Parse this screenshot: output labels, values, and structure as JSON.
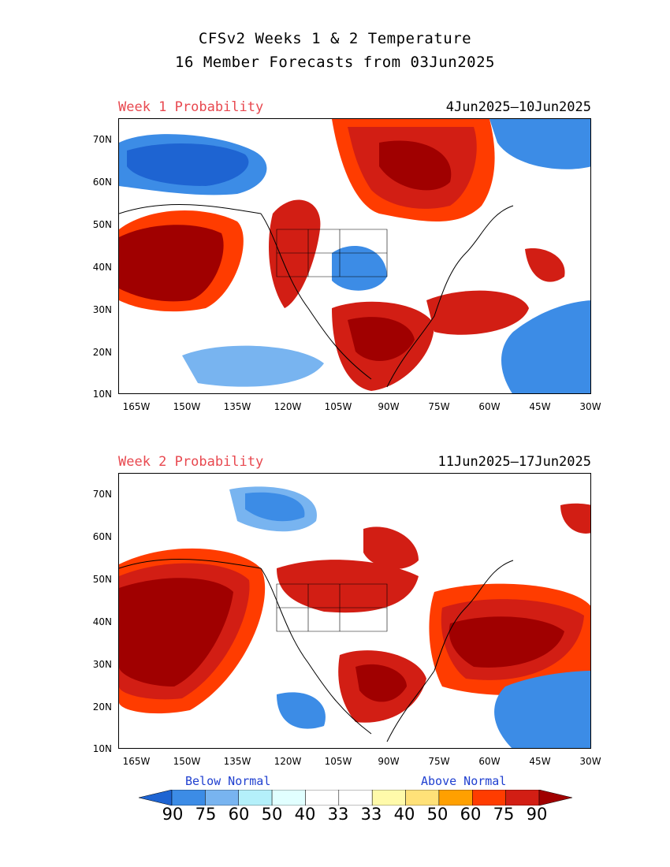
{
  "title_line1": "CFSv2 Weeks 1 & 2 Temperature",
  "title_line2": "16 Member Forecasts from 03Jun2025",
  "panels": [
    {
      "label": "Week 1 Probability",
      "dates": "4Jun2025—10Jun2025"
    },
    {
      "label": "Week 2 Probability",
      "dates": "11Jun2025—17Jun2025"
    }
  ],
  "lat_ticks": [
    "70N",
    "60N",
    "50N",
    "40N",
    "30N",
    "20N",
    "10N"
  ],
  "lon_ticks": [
    "165W",
    "150W",
    "135W",
    "120W",
    "105W",
    "90W",
    "75W",
    "60W",
    "45W",
    "30W"
  ],
  "colorbar": {
    "below_label": "Below Normal",
    "above_label": "Above Normal",
    "values": [
      "90",
      "75",
      "60",
      "50",
      "40",
      "33",
      "33",
      "40",
      "50",
      "60",
      "75",
      "90"
    ],
    "colors": [
      "#1e64d2",
      "#3c8ce6",
      "#78b4f0",
      "#b4f0fa",
      "#e1ffff",
      "#ffffff",
      "#ffffff",
      "#fffaaa",
      "#ffe178",
      "#ffa000",
      "#ff3c00",
      "#d21e14",
      "#a00000"
    ],
    "below_color": "#2040d0",
    "above_color": "#2040d0"
  }
}
